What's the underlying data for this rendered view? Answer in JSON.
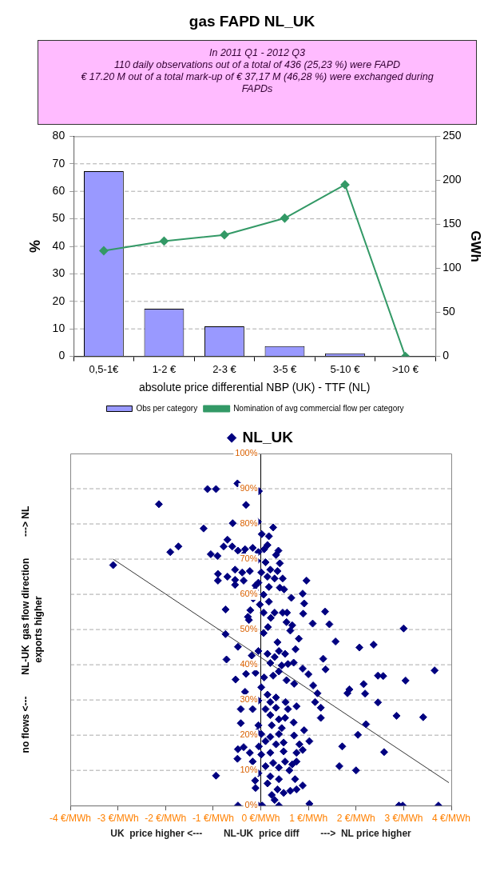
{
  "chart_data": [
    {
      "type": "bar",
      "title": "gas FAPD NL_UK",
      "subtitle": "In 2011 Q1 - 2012 Q3\n110 daily observations out of a total of 436 (25,23 %) were FAPD\n€ 17.20 M out of a total mark-up of € 37,17 M (46,28 %) were exchanged during FAPDs",
      "categories": [
        "0,5-1€",
        "1-2 €",
        "2-3 €",
        "3-5 €",
        "5-10 €",
        ">10 €"
      ],
      "series": [
        {
          "name": "Obs per category",
          "color": "#9999ff",
          "values": [
            67.3,
            17.3,
            10.9,
            3.7,
            1.1,
            0
          ]
        },
        {
          "name": "Nomination of avg commercial flow per category",
          "type": "line",
          "axis": "y2",
          "color": "#339966",
          "marker": "diamond",
          "values": [
            120,
            131,
            138,
            157,
            195,
            0
          ]
        }
      ],
      "xlabel": "absolute price differential NBP (UK) - TTF (NL)",
      "ylabel": "%",
      "y2label": "GWh",
      "ylim": [
        0,
        80
      ],
      "yticks": [
        0,
        10,
        20,
        30,
        40,
        50,
        60,
        70,
        80
      ],
      "y2lim": [
        0,
        250
      ],
      "y2ticks": [
        0,
        50,
        100,
        150,
        200,
        250
      ],
      "grid": "y",
      "legend": "bottom"
    },
    {
      "type": "scatter",
      "series": [
        {
          "name": "NL_UK",
          "color": "#000080",
          "marker": "diamond",
          "x": [
            -0.49,
            -1.12,
            -0.94,
            -0.04,
            -2.14,
            -0.31,
            -0.59,
            -0.06,
            -1.2,
            0.26,
            0.02,
            0.17,
            -0.7,
            -1.73,
            -1.9,
            -3.1,
            -1.05,
            -0.91,
            -0.78,
            -0.6,
            -0.48,
            -0.33,
            -0.17,
            -0.05,
            0.07,
            0.14,
            0.37,
            0.32,
            -0.36,
            -0.08,
            0.1,
            0.4,
            -0.54,
            -0.39,
            -0.23,
            0.01,
            0.2,
            0.35,
            -0.9,
            -0.7,
            -0.9,
            -0.54,
            -0.36,
            -0.05,
            0.14,
            0.46,
            0.29,
            -0.54,
            -0.11,
            -0.12,
            0.17,
            0.4,
            0.49,
            0.96,
            0.88,
            0.06,
            0.64,
            -0.16,
            0.17,
            0.91,
            -0.02,
            -0.74,
            -0.22,
            0.06,
            0.29,
            0.46,
            0.55,
            0.89,
            1.35,
            -0.27,
            0.21,
            -0.25,
            0.54,
            1.09,
            0.66,
            1.44,
            0.15,
            3.0,
            -0.74,
            0.06,
            0.62,
            0.8,
            0.35,
            1.57,
            2.07,
            2.37,
            0.73,
            -0.48,
            -0.19,
            -0.72,
            -0.05,
            0.14,
            0.29,
            0.38,
            0.51,
            1.31,
            0.2,
            0.44,
            0.57,
            0.69,
            0.88,
            1.36,
            1.0,
            -0.31,
            -0.53,
            -0.11,
            0.07,
            0.26,
            0.38,
            0.54,
            0.7,
            1.1,
            2.46,
            2.57,
            3.65,
            3.04,
            2.16,
            1.86,
            1.82,
            2.19,
            1.19,
            -0.33,
            0.01,
            0.14,
            0.32,
            -0.05,
            0.2,
            0.52,
            1.14,
            2.46,
            -0.42,
            -0.17,
            0.1,
            0.32,
            0.57,
            0.75,
            1.26,
            1.26,
            2.85,
            3.41,
            0.2,
            0.38,
            0.51,
            0.69,
            -0.42,
            -0.05,
            0.23,
            0.44,
            0.91,
            2.21,
            -0.08,
            0.01,
            0.2,
            0.38,
            0.7,
            2.04,
            1.02,
            0.1,
            0.32,
            0.48,
            0.81,
            -0.04,
            -0.48,
            -0.36,
            1.71,
            2.59,
            -0.23,
            0.01,
            0.2,
            0.48,
            0.75,
            0.88,
            -0.49,
            -0.17,
            0.26,
            0.51,
            0.66,
            0.75,
            1.65,
            0.1,
            0.38,
            0.6,
            2.0,
            -0.94,
            -0.05,
            0.2,
            0.38,
            0.72,
            -0.12,
            0.88,
            -0.11,
            0.14,
            0.35,
            0.48,
            0.62,
            0.75,
            0.23,
            0.29,
            1.02,
            -0.48,
            -0.05,
            0.03,
            0.38,
            2.9,
            2.98,
            3.73
          ],
          "values": [
            91.5,
            89.9,
            89.9,
            89.3,
            85.6,
            85.4,
            80.2,
            80.6,
            78.7,
            79,
            77.1,
            76.5,
            75.5,
            73.6,
            72,
            68.3,
            71.4,
            70.9,
            73.6,
            73.6,
            72.4,
            72.8,
            73.2,
            72,
            72.8,
            74,
            72.4,
            71.2,
            71.2,
            69.5,
            69.1,
            68.8,
            67,
            66.2,
            66.6,
            66.2,
            67,
            66.6,
            65.8,
            65,
            63.9,
            64.1,
            63.9,
            63.3,
            65,
            64.5,
            64.5,
            62.7,
            62.5,
            61.2,
            62.1,
            61.9,
            61.4,
            63.9,
            60.2,
            59.9,
            59,
            58.8,
            57.9,
            57.4,
            57.1,
            55.7,
            55.5,
            54.8,
            54.8,
            54.8,
            54.8,
            54.5,
            55.1,
            53.6,
            53.3,
            52.7,
            52.1,
            51.7,
            51.2,
            51.5,
            50.7,
            50.3,
            48.7,
            49,
            49.7,
            47.4,
            46.4,
            46.6,
            44.9,
            45.7,
            44.4,
            45.1,
            42.6,
            41.5,
            43.9,
            43.1,
            42.2,
            43.9,
            43.1,
            41.7,
            40.5,
            39.8,
            40.2,
            40.6,
            38.9,
            38.7,
            37.3,
            37.4,
            35.8,
            37.7,
            36.4,
            36.9,
            38.1,
            35.6,
            34.6,
            34.1,
            36.9,
            36.8,
            38.4,
            35.5,
            34.5,
            33,
            31.9,
            31.8,
            31.9,
            32.3,
            33.6,
            31.5,
            30.7,
            29.8,
            29.4,
            29.4,
            29.4,
            29.3,
            27.4,
            27.4,
            27.4,
            27.8,
            27.4,
            28.2,
            27.8,
            24.9,
            25.5,
            25.1,
            25.7,
            24.5,
            24.9,
            23.6,
            23.4,
            22.8,
            22.8,
            22,
            21.4,
            23.1,
            20.9,
            20.3,
            19.5,
            20.3,
            19.9,
            20.1,
            18.3,
            18.3,
            17.4,
            17.9,
            17.4,
            16.8,
            16,
            16.6,
            16.8,
            15.2,
            15,
            14.5,
            15,
            15.4,
            15,
            15.8,
            13.3,
            12.5,
            12.1,
            12.5,
            11.7,
            12.5,
            11.2,
            11.2,
            10.8,
            10,
            10,
            8.5,
            9.2,
            8.3,
            7.5,
            7.5,
            7.1,
            5.7,
            5,
            6.3,
            4.6,
            3.6,
            4.2,
            4.6,
            3,
            1.6,
            0.5,
            0,
            0,
            0,
            0,
            0,
            0,
            0
          ]
        },
        {
          "type": "line",
          "color": "#333333",
          "marker": "none",
          "x": [
            -3.1,
            3.95
          ],
          "values": [
            70,
            6.5
          ]
        }
      ],
      "xlabel": "UK  price higher <---        NL-UK  price diff        --->  NL price higher",
      "ylabel": "no flows <---        NL-UK  gas flow direction        ---> NL\nexports higher",
      "xlim": [
        -4,
        4
      ],
      "xticks": [
        {
          "value": -4,
          "label": "-4 €/MWh"
        },
        {
          "value": -3,
          "label": "-3 €/MWh"
        },
        {
          "value": -2,
          "label": "-2 €/MWh"
        },
        {
          "value": -1,
          "label": "-1 €/MWh"
        },
        {
          "value": 0,
          "label": "0 €/MWh"
        },
        {
          "value": 1,
          "label": "1 €/MWh"
        },
        {
          "value": 2,
          "label": "2 €/MWh"
        },
        {
          "value": 3,
          "label": "3 €/MWh"
        },
        {
          "value": 4,
          "label": "4 €/MWh"
        }
      ],
      "ylim": [
        0,
        100
      ],
      "yticks": [
        {
          "value": 0,
          "label": "0%"
        },
        {
          "value": 10,
          "label": "10%"
        },
        {
          "value": 20,
          "label": "20%"
        },
        {
          "value": 30,
          "label": "30%"
        },
        {
          "value": 40,
          "label": "40%"
        },
        {
          "value": 50,
          "label": "50%"
        },
        {
          "value": 60,
          "label": "60%"
        },
        {
          "value": 70,
          "label": "70%"
        },
        {
          "value": 80,
          "label": "80%"
        },
        {
          "value": 90,
          "label": "90%"
        },
        {
          "value": 100,
          "label": "100%"
        }
      ],
      "grid": "y",
      "legend": "top"
    }
  ]
}
